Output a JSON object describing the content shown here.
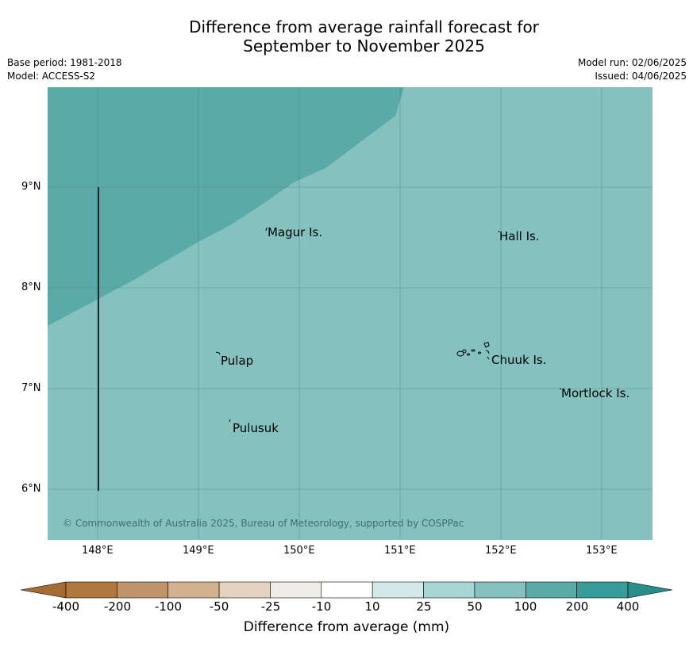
{
  "title": {
    "line1": "Difference from average rainfall forecast for",
    "line2": "September to November 2025"
  },
  "meta": {
    "base_period": "Base period: 1981-2018",
    "model": "Model: ACCESS-S2",
    "model_run": "Model run: 02/06/2025",
    "issued": "Issued: 04/06/2025"
  },
  "map": {
    "lat_labels": [
      "9°N",
      "8°N",
      "7°N",
      "6°N"
    ],
    "lon_labels": [
      "148°E",
      "149°E",
      "150°E",
      "151°E",
      "152°E",
      "153°E"
    ],
    "places": [
      "Magur Is.",
      "Hall Is.",
      "Pulap",
      "Chuuk Is.",
      "Mortlock Is.",
      "Pulusuk"
    ],
    "copyright": "© Commonwealth of Australia 2025, Bureau of Meteorology, supported by COSPPac",
    "colors": {
      "band_100_200": "#5aaaaa",
      "band_50_100": "#84c1bf"
    }
  },
  "colorbar": {
    "labels": [
      "-400",
      "-200",
      "-100",
      "-50",
      "-25",
      "-10",
      "10",
      "25",
      "50",
      "100",
      "200",
      "400"
    ],
    "colors": [
      "#a56b33",
      "#af773d",
      "#c0946a",
      "#d3b292",
      "#e5d3c1",
      "#f0ece8",
      "#ffffff",
      "#d3e9e8",
      "#a8d5d3",
      "#84c1bf",
      "#5aaaaa",
      "#389c98",
      "#2b8d8a"
    ],
    "title": "Difference from average (mm)"
  }
}
